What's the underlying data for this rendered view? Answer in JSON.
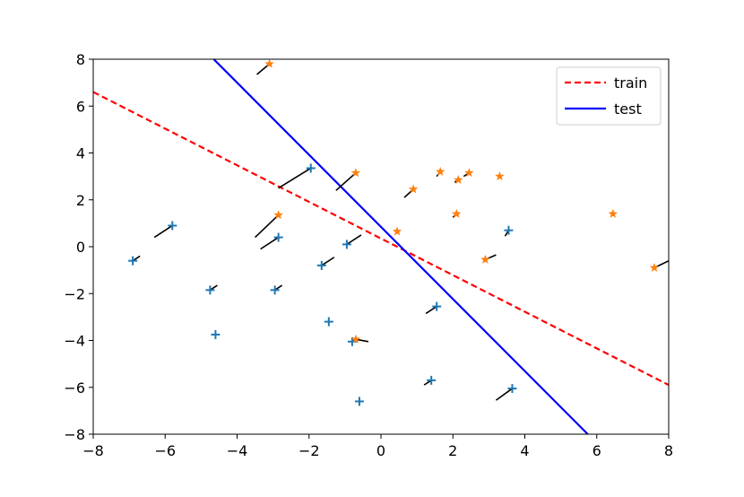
{
  "chart_data": {
    "type": "scatter",
    "title": "",
    "xlabel": "",
    "ylabel": "",
    "xlim": [
      -8,
      8
    ],
    "ylim": [
      -8,
      8
    ],
    "xticks": [
      -8,
      -6,
      -4,
      -2,
      0,
      2,
      4,
      6,
      8
    ],
    "yticks": [
      -8,
      -6,
      -4,
      -2,
      0,
      2,
      4,
      6,
      8
    ],
    "tick_labels_x": [
      "−8",
      "−6",
      "−4",
      "−2",
      "0",
      "2",
      "4",
      "6",
      "8"
    ],
    "tick_labels_y": [
      "−8",
      "−6",
      "−4",
      "−2",
      "0",
      "2",
      "4",
      "6",
      "8"
    ],
    "grid": false,
    "legend_position": "top-right",
    "colors": {
      "plus_marker": "#1f77b4",
      "star_marker": "#ff7f0e",
      "train_line": "#ff0000",
      "test_line": "#0000ff",
      "arrow": "#000000"
    },
    "lines": [
      {
        "name": "train",
        "style": "dashed",
        "color": "#ff0000",
        "points": [
          [
            -8,
            6.6
          ],
          [
            8,
            -5.9
          ]
        ]
      },
      {
        "name": "test",
        "style": "solid",
        "color": "#0000ff",
        "points": [
          [
            -4.65,
            8
          ],
          [
            5.75,
            -8
          ]
        ]
      }
    ],
    "series": [
      {
        "marker": "plus",
        "color": "#1f77b4",
        "points": [
          {
            "x": -6.9,
            "y": -0.6,
            "dx": 0.2,
            "dy": 0.2
          },
          {
            "x": -5.8,
            "y": 0.9,
            "dx": -0.5,
            "dy": -0.5
          },
          {
            "x": -4.75,
            "y": -1.85,
            "dx": 0.2,
            "dy": 0.2
          },
          {
            "x": -4.6,
            "y": -3.75,
            "dx": 0.0,
            "dy": 0.0
          },
          {
            "x": -2.95,
            "y": -1.85,
            "dx": 0.2,
            "dy": 0.2
          },
          {
            "x": -2.85,
            "y": 0.4,
            "dx": -0.5,
            "dy": -0.5
          },
          {
            "x": -1.95,
            "y": 3.35,
            "dx": -0.9,
            "dy": -0.85
          },
          {
            "x": -1.65,
            "y": -0.8,
            "dx": 0.35,
            "dy": 0.35
          },
          {
            "x": -0.95,
            "y": 0.1,
            "dx": 0.4,
            "dy": 0.4
          },
          {
            "x": -1.45,
            "y": -3.2,
            "dx": 0.0,
            "dy": 0.0
          },
          {
            "x": -0.8,
            "y": -4.05,
            "dx": 0.1,
            "dy": 0.1
          },
          {
            "x": -0.6,
            "y": -6.6,
            "dx": 0.0,
            "dy": 0.0
          },
          {
            "x": 1.4,
            "y": -5.7,
            "dx": -0.2,
            "dy": -0.2
          },
          {
            "x": 1.55,
            "y": -2.55,
            "dx": -0.3,
            "dy": -0.3
          },
          {
            "x": 3.55,
            "y": 0.7,
            "dx": -0.1,
            "dy": -0.25
          },
          {
            "x": 3.65,
            "y": -6.05,
            "dx": -0.45,
            "dy": -0.5
          }
        ]
      },
      {
        "marker": "star",
        "color": "#ff7f0e",
        "points": [
          {
            "x": -3.1,
            "y": 7.8,
            "dx": -0.35,
            "dy": -0.45
          },
          {
            "x": -2.85,
            "y": 1.35,
            "dx": -0.65,
            "dy": -0.95
          },
          {
            "x": -0.7,
            "y": 3.15,
            "dx": -0.55,
            "dy": -0.75
          },
          {
            "x": -0.7,
            "y": -3.95,
            "dx": 0.35,
            "dy": -0.1
          },
          {
            "x": 0.45,
            "y": 0.65,
            "dx": 0.0,
            "dy": 0.0
          },
          {
            "x": 0.9,
            "y": 2.45,
            "dx": -0.25,
            "dy": -0.35
          },
          {
            "x": 1.65,
            "y": 3.2,
            "dx": -0.1,
            "dy": -0.2
          },
          {
            "x": 2.1,
            "y": 1.4,
            "dx": -0.1,
            "dy": -0.15
          },
          {
            "x": 2.15,
            "y": 2.85,
            "dx": -0.1,
            "dy": -0.1
          },
          {
            "x": 2.45,
            "y": 3.15,
            "dx": -0.15,
            "dy": -0.15
          },
          {
            "x": 2.9,
            "y": -0.55,
            "dx": 0.3,
            "dy": 0.2
          },
          {
            "x": 3.3,
            "y": 3.0,
            "dx": 0.0,
            "dy": 0.0
          },
          {
            "x": 6.45,
            "y": 1.4,
            "dx": 0.0,
            "dy": 0.0
          },
          {
            "x": 7.6,
            "y": -0.9,
            "dx": 0.4,
            "dy": 0.3
          }
        ]
      }
    ]
  }
}
